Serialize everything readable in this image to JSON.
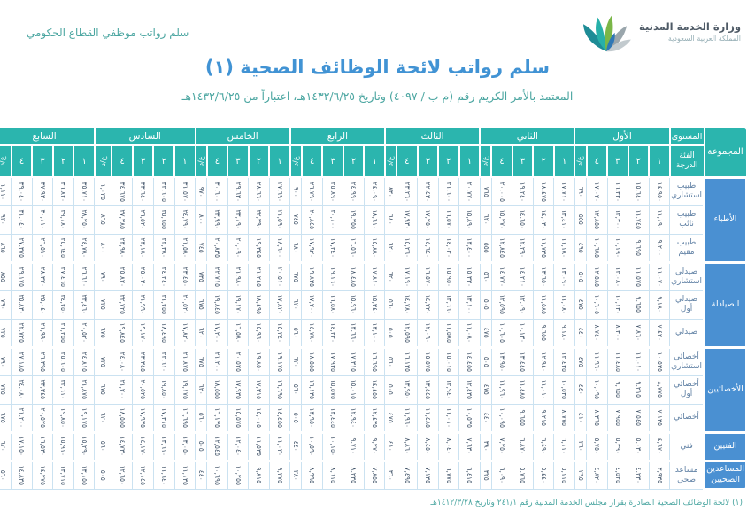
{
  "page": {
    "tagline": "سلم رواتب موظفي القطاع الحكومي",
    "ministry_name": "وزارة الخدمة المدنية",
    "ministry_sub": "المملكة العربية السعودية",
    "title": "سلم رواتب لائحة الوظائف الصحية (١)",
    "subtitle": "المعتمد بالأمر الكريم رقم (م ب / ٤٠٩٧) وتاريخ ١٤٣٢/٦/٢٥هـ، اعتباراً من ١٤٣٢/٦/٢٥هـ",
    "footnote": "(١) لائحة الوظائف الصحية الصادرة بقرار مجلس الخدمة المدنية رقم ٢٤١/١ وتاريخ ١٤١٢/٣/٢٨هـ"
  },
  "colors": {
    "header_teal": "#2BB5AE",
    "group_blue": "#4A90D2",
    "title_blue": "#4193D4",
    "accent_teal": "#4BA6A1",
    "grid_blue": "#CBE2F1",
    "number_ink": "#44566B",
    "category_ink": "#5E7FA3"
  },
  "table": {
    "corner_top": "المستوى",
    "corner_bottom_line1": "الفئة",
    "corner_bottom_line2": "الدرجة",
    "group_header": "المجموعة",
    "levels": [
      "الأول",
      "الثاني",
      "الثالث",
      "الرابع",
      "الخامس",
      "السادس",
      "السابع"
    ],
    "step_headers": [
      "١",
      "٢",
      "٣",
      "٤"
    ],
    "allowance_header": "ع/د",
    "groups": [
      {
        "name": "الأطباء",
        "rows": [
          {
            "category": "طبيب استشاري",
            "levels": [
              [
                14950,
                15640,
                16330,
                17020,
                690
              ],
              [
                17710,
                18475,
                19240,
                20005,
                765
              ],
              [
                20770,
                21600,
                22430,
                23260,
                830
              ],
              [
                24090,
                24990,
                25890,
                26790,
                900
              ],
              [
                27690,
                28660,
                29630,
                30600,
                970
              ],
              [
                31570,
                32605,
                33640,
                34675,
                1035
              ],
              [
                35710,
                36820,
                37930,
                39040,
                1110
              ]
            ]
          },
          {
            "category": "طبيب نائب",
            "levels": [
              [
                11190,
                11745,
                12300,
                12855,
                555
              ],
              [
                13410,
                14030,
                14650,
                15270,
                620
              ],
              [
                15890,
                16570,
                17250,
                17930,
                680
              ],
              [
                18610,
                19355,
                20100,
                20845,
                745
              ],
              [
                21590,
                22390,
                23190,
                23990,
                800
              ],
              [
                24790,
                25655,
                26520,
                27385,
                865
              ],
              [
                28250,
                29180,
                30110,
                31040,
                930
              ]
            ]
          },
          {
            "category": "طبيب مقيم",
            "levels": [
              [
                9200,
                9695,
                10190,
                10685,
                495
              ],
              [
                11180,
                11735,
                12290,
                12845,
                555
              ],
              [
                13400,
                14020,
                14640,
                15260,
                620
              ],
              [
                15880,
                16560,
                17240,
                17920,
                680
              ],
              [
                18600,
                19345,
                20090,
                20835,
                745
              ],
              [
                21580,
                22380,
                23180,
                23980,
                800
              ],
              [
                24780,
                25645,
                26510,
                27375,
                865
              ]
            ]
          }
        ]
      },
      {
        "name": "الصيادلة",
        "rows": [
          {
            "category": "صيدلي استشاري",
            "levels": [
              [
                11070,
                11575,
                12080,
                12585,
                505
              ],
              [
                13090,
                13650,
                14210,
                14770,
                560
              ],
              [
                15330,
                15950,
                16570,
                17190,
                620
              ],
              [
                17810,
                18485,
                19160,
                19835,
                675
              ],
              [
                20510,
                21245,
                21980,
                22715,
                735
              ],
              [
                23450,
                24240,
                25030,
                25820,
                790
              ],
              [
                26610,
                27465,
                28320,
                29175,
                855
              ]
            ]
          },
          {
            "category": "صيدلي أول",
            "levels": [
              [
                9180,
                9655,
                10130,
                10605,
                475
              ],
              [
                11080,
                11585,
                12090,
                12595,
                505
              ],
              [
                13100,
                13660,
                14220,
                14780,
                560
              ],
              [
                15340,
                15960,
                16580,
                17200,
                620
              ],
              [
                17820,
                18495,
                19170,
                19845,
                675
              ],
              [
                20520,
                21255,
                21990,
                22725,
                735
              ],
              [
                23460,
                24250,
                25040,
                25830,
                790
              ]
            ]
          },
          {
            "category": "صيدلي",
            "levels": [
              [
                7420,
                7860,
                8300,
                8740,
                440
              ],
              [
                9180,
                9655,
                10130,
                10605,
                475
              ],
              [
                11080,
                11585,
                12090,
                12595,
                505
              ],
              [
                13100,
                13660,
                14220,
                14780,
                560
              ],
              [
                15340,
                15960,
                16580,
                17200,
                620
              ],
              [
                17820,
                18495,
                19170,
                19845,
                675
              ],
              [
                20520,
                21255,
                21990,
                22725,
                735
              ]
            ]
          }
        ]
      },
      {
        "name": "الأخصائيين",
        "rows": [
          {
            "category": "أخصائي استشاري",
            "levels": [
              [
                10535,
                11010,
                11485,
                11960,
                475
              ],
              [
                12435,
                12940,
                13445,
                13950,
                505
              ],
              [
                14455,
                15015,
                15575,
                16135,
                560
              ],
              [
                16695,
                17315,
                17935,
                18555,
                620
              ],
              [
                19175,
                19850,
                20525,
                21200,
                675
              ],
              [
                21875,
                22610,
                23345,
                24080,
                735
              ],
              [
                24815,
                25605,
                26395,
                27185,
                790
              ]
            ]
          },
          {
            "category": "أخصائي أول",
            "levels": [
              [
                8775,
                9215,
                9655,
                10095,
                440
              ],
              [
                10535,
                11010,
                11485,
                11960,
                475
              ],
              [
                12435,
                12940,
                13445,
                13950,
                505
              ],
              [
                14455,
                15015,
                15575,
                16135,
                560
              ],
              [
                16695,
                17315,
                17935,
                18555,
                620
              ],
              [
                19175,
                19850,
                20525,
                21200,
                675
              ],
              [
                21875,
                22610,
                23345,
                24080,
                735
              ]
            ]
          },
          {
            "category": "أخصائي",
            "levels": [
              [
                7135,
                7545,
                7955,
                8365,
                410
              ],
              [
                8775,
                9215,
                9655,
                10095,
                440
              ],
              [
                10535,
                11010,
                11485,
                11960,
                475
              ],
              [
                12435,
                12940,
                13445,
                13950,
                505
              ],
              [
                14455,
                15015,
                15575,
                16135,
                560
              ],
              [
                16695,
                17315,
                17935,
                18555,
                620
              ],
              [
                19175,
                19850,
                20525,
                21200,
                675
              ]
            ]
          }
        ]
      },
      {
        "name": "الفنيين",
        "rows": [
          {
            "category": "فني",
            "levels": [
              [
                4670,
                5030,
                5390,
                5750,
                360
              ],
              [
                6110,
                6490,
                6870,
                7250,
                380
              ],
              [
                7630,
                8040,
                8450,
                8860,
                410
              ],
              [
                9270,
                9710,
                10150,
                10590,
                440
              ],
              [
                11030,
                11535,
                12040,
                12545,
                505
              ],
              [
                13050,
                13610,
                14170,
                14730,
                560
              ],
              [
                15290,
                15910,
                16530,
                17150,
                620
              ]
            ]
          }
        ]
      },
      {
        "name": "المساعدين الصحيين",
        "rows": [
          {
            "category": "مساعد صحي",
            "levels": [
              [
                3935,
                4230,
                4525,
                4820,
                295
              ],
              [
                5115,
                5440,
                5765,
                6090,
                325
              ],
              [
                6415,
                6775,
                7135,
                7495,
                360
              ],
              [
                7855,
                8235,
                8615,
                8995,
                380
              ],
              [
                9375,
                9815,
                10255,
                10695,
                440
              ],
              [
                11135,
                11640,
                12145,
                12650,
                505
              ],
              [
                13155,
                13715,
                14275,
                14835,
                560
              ]
            ]
          }
        ]
      }
    ]
  }
}
